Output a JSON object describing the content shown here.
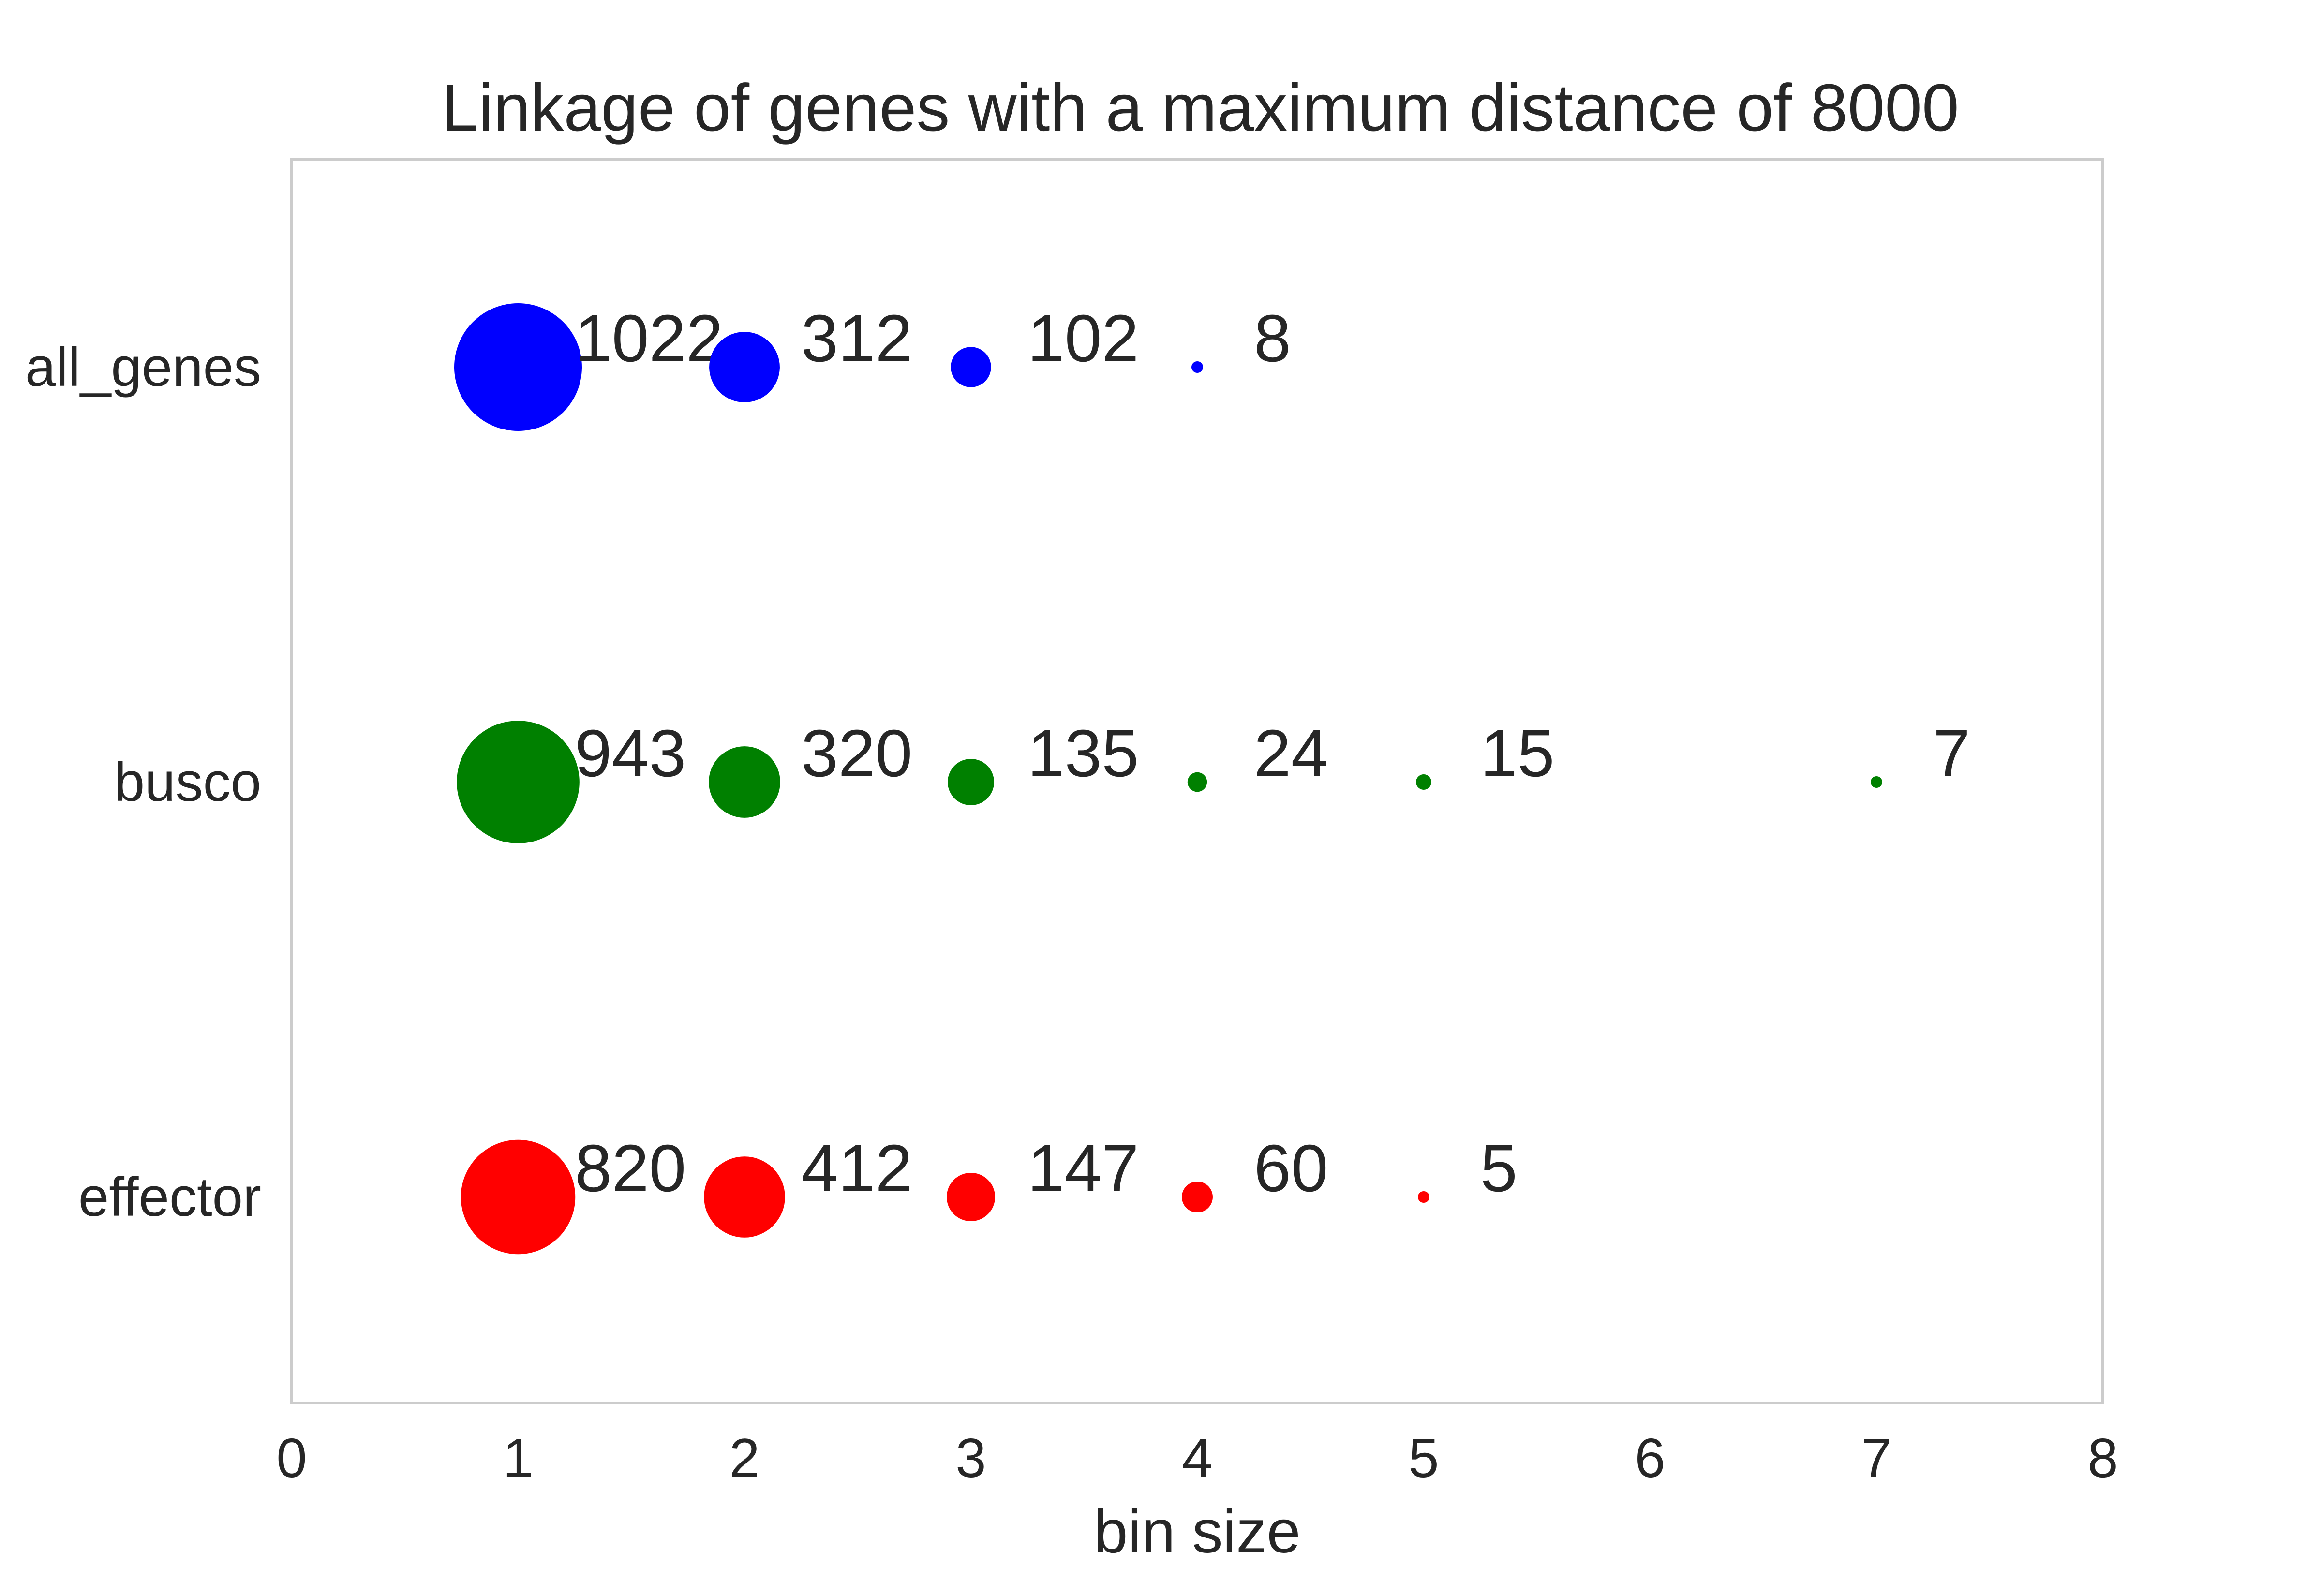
{
  "chart_data": {
    "type": "scatter",
    "title": "Linkage of genes with a maximum distance of 8000",
    "xlabel": "bin size",
    "ylabel": "",
    "xlim": [
      0,
      8
    ],
    "xticks": [
      "0",
      "1",
      "2",
      "3",
      "4",
      "5",
      "6",
      "7",
      "8"
    ],
    "categories": [
      "all_genes",
      "busco",
      "effector"
    ],
    "grid": false,
    "series": [
      {
        "category": "all_genes",
        "color": "#0000ff",
        "points": [
          {
            "x": 1,
            "value": 1022
          },
          {
            "x": 2,
            "value": 312
          },
          {
            "x": 3,
            "value": 102
          },
          {
            "x": 4,
            "value": 8
          }
        ]
      },
      {
        "category": "busco",
        "color": "#008000",
        "points": [
          {
            "x": 1,
            "value": 943
          },
          {
            "x": 2,
            "value": 320
          },
          {
            "x": 3,
            "value": 135
          },
          {
            "x": 4,
            "value": 24
          },
          {
            "x": 5,
            "value": 15
          },
          {
            "x": 7,
            "value": 7
          }
        ]
      },
      {
        "category": "effector",
        "color": "#ff0000",
        "points": [
          {
            "x": 1,
            "value": 820
          },
          {
            "x": 2,
            "value": 412
          },
          {
            "x": 3,
            "value": 147
          },
          {
            "x": 4,
            "value": 60
          },
          {
            "x": 5,
            "value": 5
          }
        ]
      }
    ]
  }
}
